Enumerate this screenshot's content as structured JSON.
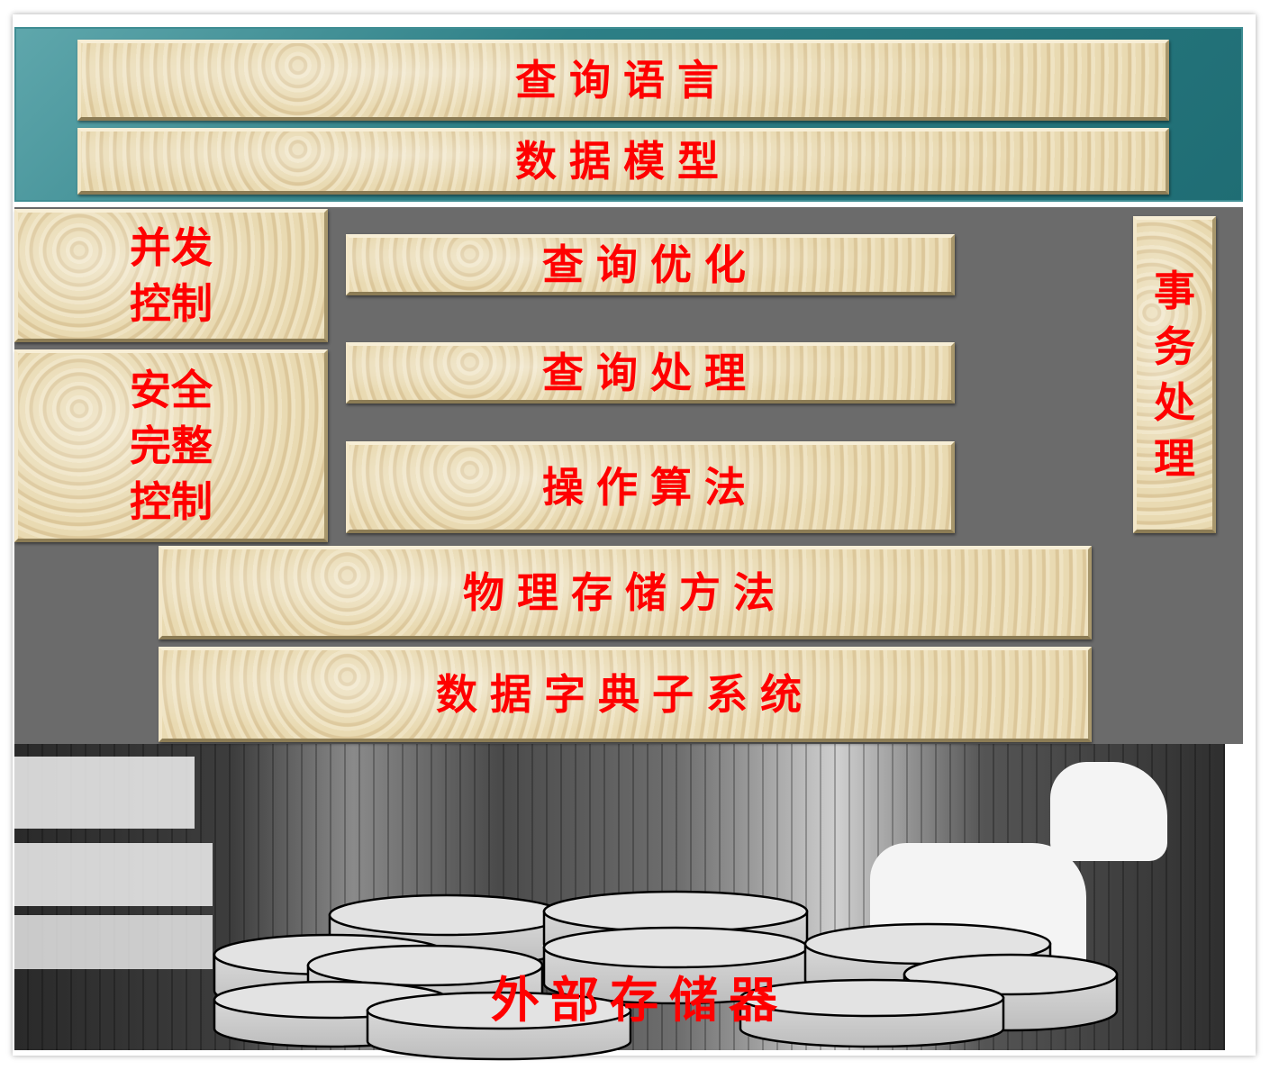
{
  "top": {
    "query_language": "查询语言",
    "data_model": "数据模型"
  },
  "left": {
    "concurrency_control": [
      "并发",
      "控制"
    ],
    "security_integrity_control": [
      "安全",
      "完整",
      "控制"
    ]
  },
  "center": {
    "query_optimization": "查询优化",
    "query_processing": "查询处理",
    "operation_algorithms": "操作算法",
    "physical_storage": "物理存储方法",
    "data_dictionary": "数据字典子系统"
  },
  "right": {
    "transaction_processing": [
      "事",
      "务",
      "处",
      "理"
    ]
  },
  "bottom": {
    "external_storage": "外部存储器"
  },
  "colors": {
    "label": "#ff0000",
    "teal": "#2d7f86",
    "gray_panel": "#6b6b6b",
    "parchment": "#e6d5ab"
  }
}
